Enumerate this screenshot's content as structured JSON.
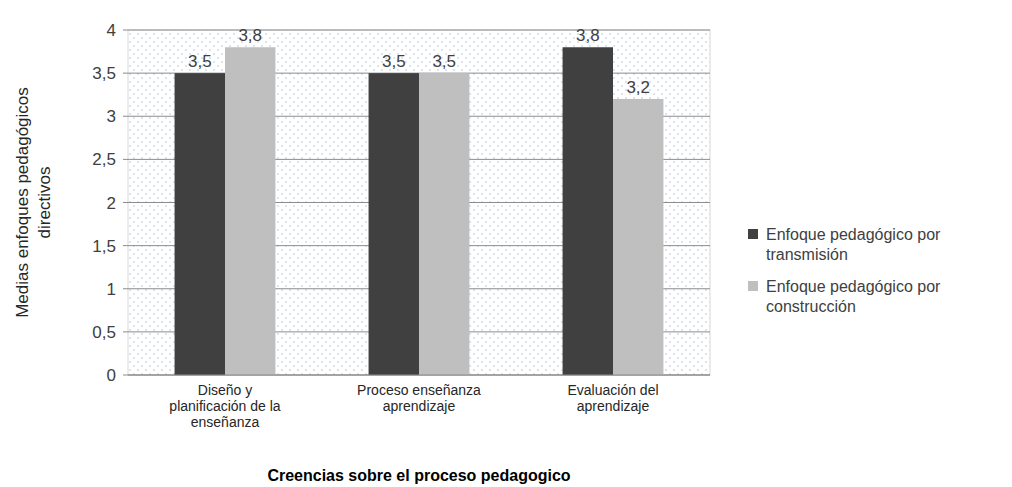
{
  "chart_data": {
    "type": "bar",
    "xlabel": "Creencias sobre el proceso pedagogico",
    "ylabel": "Medias enfoques pedagógicos directivos",
    "categories": [
      "Diseño y planificación de la enseñanza",
      "Proceso enseñanza aprendizaje",
      "Evaluación del aprendizaje"
    ],
    "series": [
      {
        "name": "Enfoque pedagógico por transmisión",
        "color": "#404040",
        "values": [
          3.5,
          3.5,
          3.8
        ],
        "value_labels": [
          "3,5",
          "3,5",
          "3,8"
        ]
      },
      {
        "name": "Enfoque pedagógico por construcción",
        "color": "#bfbfbf",
        "values": [
          3.8,
          3.5,
          3.2
        ],
        "value_labels": [
          "3,8",
          "3,5",
          "3,2"
        ]
      }
    ],
    "ylim": [
      0,
      4
    ],
    "yticks": [
      0,
      {
        "value": 0.5,
        "label": "0,5"
      },
      1,
      {
        "value": 1.5,
        "label": "1,5"
      },
      2,
      {
        "value": 2.5,
        "label": "2,5"
      },
      3,
      {
        "value": 3.5,
        "label": "3,5"
      },
      4
    ],
    "grid": true,
    "legend": "right",
    "data_labels": true
  }
}
